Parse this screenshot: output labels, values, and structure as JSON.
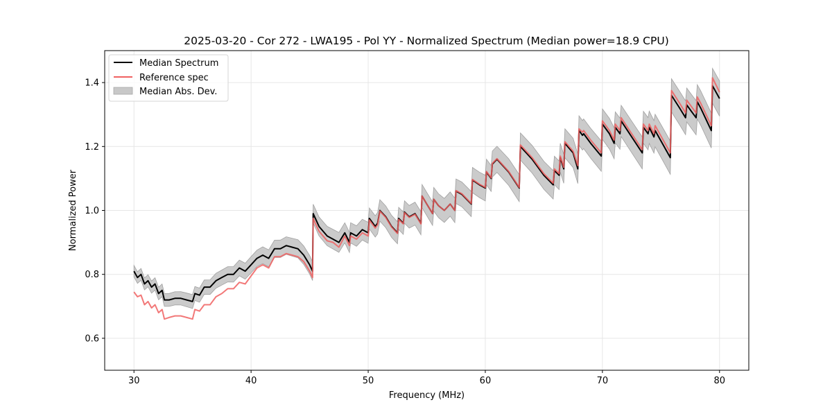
{
  "chart_data": {
    "type": "line",
    "title": "2025-03-20 - Cor 272 - LWA195 - Pol YY - Normalized Spectrum (Median power=18.9 CPU)",
    "xlabel": "Frequency (MHz)",
    "ylabel": "Normalized Power",
    "xlim": [
      27.5,
      82.5
    ],
    "ylim": [
      0.5,
      1.5
    ],
    "xticks": [
      30,
      40,
      50,
      60,
      70,
      80
    ],
    "xtick_labels": [
      "30",
      "40",
      "50",
      "60",
      "70",
      "80"
    ],
    "yticks": [
      0.6,
      0.8,
      1.0,
      1.2,
      1.4
    ],
    "ytick_labels": [
      "0.6",
      "0.8",
      "1.0",
      "1.2",
      "1.4"
    ],
    "grid": true,
    "legend": {
      "placement": "top-left",
      "entries": [
        {
          "label": "Median Spectrum",
          "kind": "line",
          "color": "#000000"
        },
        {
          "label": "Reference spec",
          "kind": "line",
          "color": "#f06060"
        },
        {
          "label": "Median Abs. Dev.",
          "kind": "band",
          "color": "#c8c8c8"
        }
      ]
    },
    "colors": {
      "median": "#000000",
      "reference": "#f06060",
      "band_fill": "#c8c8c8",
      "band_edge": "#a0a0a0",
      "grid": "#e6e6e6"
    },
    "series": [
      {
        "name": "Median Spectrum",
        "x": [
          30.0,
          30.3,
          30.6,
          30.9,
          31.2,
          31.5,
          31.8,
          32.1,
          32.4,
          32.6,
          33.0,
          33.5,
          34.0,
          34.5,
          35.0,
          35.2,
          35.6,
          36.0,
          36.5,
          37.0,
          37.5,
          38.0,
          38.5,
          39.0,
          39.5,
          40.0,
          40.5,
          41.0,
          41.5,
          42.0,
          42.5,
          43.0,
          43.5,
          44.0,
          44.5,
          45.0,
          45.25,
          45.3,
          45.8,
          46.5,
          47.0,
          47.5,
          48.0,
          48.4,
          48.5,
          49.0,
          49.5,
          50.0,
          50.1,
          50.6,
          50.8,
          51.0,
          51.5,
          52.0,
          52.5,
          52.6,
          53.0,
          53.1,
          53.5,
          54.0,
          54.5,
          54.6,
          55.0,
          55.5,
          55.6,
          56.0,
          56.5,
          57.0,
          57.4,
          57.5,
          58.0,
          58.8,
          58.9,
          59.5,
          60.0,
          60.1,
          60.5,
          60.6,
          61.0,
          62.0,
          62.9,
          63.0,
          64.0,
          65.0,
          65.8,
          65.9,
          66.3,
          66.4,
          66.7,
          66.8,
          67.5,
          67.9,
          68.0,
          68.3,
          68.4,
          69.0,
          69.9,
          70.0,
          70.6,
          71.0,
          71.1,
          71.5,
          71.6,
          72.5,
          73.4,
          73.5,
          73.9,
          74.0,
          74.4,
          74.5,
          75.8,
          75.9,
          76.6,
          77.1,
          77.2,
          77.6,
          78.0,
          78.1,
          78.4,
          79.3,
          79.4,
          80.0
        ],
        "values": [
          0.81,
          0.79,
          0.8,
          0.77,
          0.78,
          0.76,
          0.77,
          0.74,
          0.75,
          0.72,
          0.72,
          0.725,
          0.725,
          0.72,
          0.715,
          0.74,
          0.735,
          0.76,
          0.76,
          0.78,
          0.79,
          0.8,
          0.8,
          0.82,
          0.81,
          0.83,
          0.85,
          0.86,
          0.85,
          0.88,
          0.88,
          0.89,
          0.885,
          0.88,
          0.86,
          0.83,
          0.81,
          0.99,
          0.95,
          0.92,
          0.91,
          0.9,
          0.93,
          0.9,
          0.93,
          0.92,
          0.94,
          0.93,
          0.975,
          0.95,
          0.96,
          1.0,
          0.98,
          0.95,
          0.93,
          0.975,
          0.96,
          0.995,
          0.98,
          0.99,
          0.96,
          1.045,
          1.02,
          0.99,
          1.035,
          1.015,
          1.0,
          1.02,
          1.0,
          1.06,
          1.05,
          1.02,
          1.095,
          1.08,
          1.07,
          1.12,
          1.1,
          1.145,
          1.16,
          1.12,
          1.07,
          1.2,
          1.16,
          1.11,
          1.08,
          1.125,
          1.11,
          1.165,
          1.13,
          1.21,
          1.18,
          1.13,
          1.25,
          1.235,
          1.24,
          1.21,
          1.17,
          1.27,
          1.24,
          1.21,
          1.26,
          1.24,
          1.28,
          1.23,
          1.18,
          1.26,
          1.24,
          1.26,
          1.23,
          1.25,
          1.165,
          1.36,
          1.32,
          1.29,
          1.33,
          1.31,
          1.29,
          1.34,
          1.32,
          1.25,
          1.39,
          1.35
        ]
      },
      {
        "name": "Reference spec",
        "x": [
          30.0,
          30.3,
          30.6,
          30.9,
          31.2,
          31.5,
          31.8,
          32.1,
          32.4,
          32.6,
          33.0,
          33.5,
          34.0,
          34.5,
          35.0,
          35.2,
          35.6,
          36.0,
          36.5,
          37.0,
          37.5,
          38.0,
          38.5,
          39.0,
          39.5,
          40.0,
          40.5,
          41.0,
          41.5,
          42.0,
          42.5,
          43.0,
          43.5,
          44.0,
          44.5,
          45.0,
          45.25,
          45.3,
          45.8,
          46.5,
          47.0,
          47.5,
          48.0,
          48.4,
          48.5,
          49.0,
          49.5,
          50.0,
          50.1,
          50.6,
          50.8,
          51.0,
          51.5,
          52.0,
          52.5,
          52.6,
          53.0,
          53.1,
          53.5,
          54.0,
          54.5,
          54.6,
          55.0,
          55.5,
          55.6,
          56.0,
          56.5,
          57.0,
          57.4,
          57.5,
          58.0,
          58.8,
          58.9,
          59.5,
          60.0,
          60.1,
          60.5,
          60.6,
          61.0,
          62.0,
          62.9,
          63.0,
          64.0,
          65.0,
          65.8,
          65.9,
          66.3,
          66.4,
          66.7,
          66.8,
          67.5,
          67.9,
          68.0,
          68.3,
          68.4,
          69.0,
          69.9,
          70.0,
          70.6,
          71.0,
          71.1,
          71.5,
          71.6,
          72.5,
          73.4,
          73.5,
          73.9,
          74.0,
          74.4,
          74.5,
          75.8,
          75.9,
          76.6,
          77.1,
          77.2,
          77.6,
          78.0,
          78.1,
          78.4,
          79.3,
          79.4,
          80.0
        ],
        "values": [
          0.745,
          0.73,
          0.735,
          0.705,
          0.715,
          0.695,
          0.705,
          0.68,
          0.69,
          0.66,
          0.665,
          0.67,
          0.67,
          0.665,
          0.66,
          0.69,
          0.685,
          0.705,
          0.705,
          0.73,
          0.74,
          0.755,
          0.755,
          0.775,
          0.77,
          0.795,
          0.82,
          0.83,
          0.82,
          0.855,
          0.855,
          0.865,
          0.86,
          0.855,
          0.84,
          0.81,
          0.79,
          0.975,
          0.935,
          0.905,
          0.9,
          0.885,
          0.92,
          0.89,
          0.92,
          0.91,
          0.93,
          0.92,
          0.97,
          0.945,
          0.955,
          0.998,
          0.978,
          0.948,
          0.928,
          0.972,
          0.958,
          0.993,
          0.978,
          0.988,
          0.958,
          1.045,
          1.02,
          0.99,
          1.035,
          1.015,
          1.0,
          1.02,
          1.0,
          1.062,
          1.052,
          1.022,
          1.097,
          1.082,
          1.072,
          1.122,
          1.102,
          1.147,
          1.162,
          1.122,
          1.072,
          1.205,
          1.165,
          1.115,
          1.085,
          1.13,
          1.115,
          1.17,
          1.135,
          1.215,
          1.185,
          1.14,
          1.255,
          1.245,
          1.25,
          1.22,
          1.18,
          1.28,
          1.25,
          1.22,
          1.27,
          1.25,
          1.29,
          1.24,
          1.19,
          1.27,
          1.25,
          1.27,
          1.24,
          1.265,
          1.18,
          1.375,
          1.335,
          1.305,
          1.345,
          1.325,
          1.305,
          1.355,
          1.335,
          1.265,
          1.415,
          1.37
        ]
      }
    ],
    "band": {
      "name": "Median Abs. Dev.",
      "half_width_start": 0.018,
      "half_width_end": 0.055
    }
  }
}
